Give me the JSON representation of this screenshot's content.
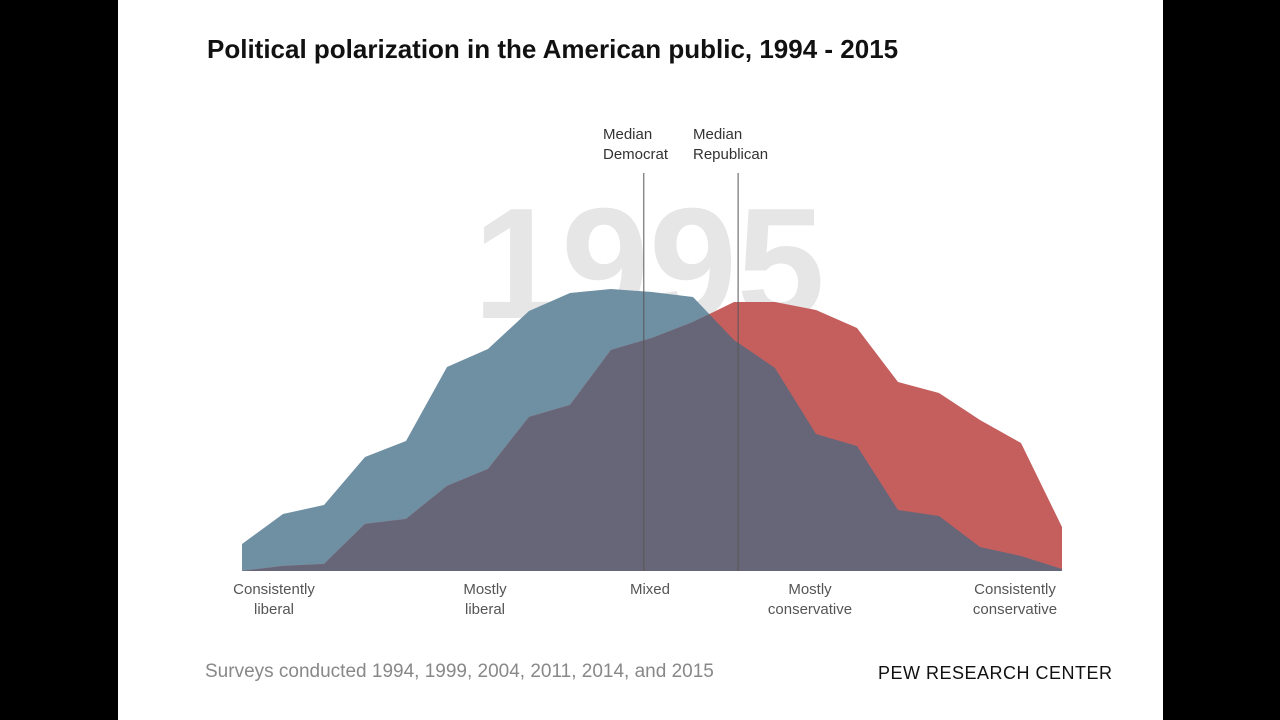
{
  "title": "Political polarization in the American public, 1994 - 2015",
  "footnote": "Surveys conducted 1994, 1999, 2004, 2011, 2014, and 2015",
  "brand": "PEW RESEARCH CENTER",
  "chart_data": {
    "type": "area",
    "title": "Political polarization in the American public, 1994 - 2015",
    "year_watermark": "1995",
    "x": [
      -10,
      -9,
      -8,
      -7,
      -6,
      -5,
      -4,
      -3,
      -2,
      -1,
      0,
      1,
      2,
      3,
      4,
      5,
      6,
      7,
      8,
      9,
      10
    ],
    "x_tick_labels": [
      {
        "x": -9,
        "lines": [
          "Consistently",
          "liberal"
        ]
      },
      {
        "x": -4,
        "lines": [
          "Mostly",
          "liberal"
        ]
      },
      {
        "x": 0,
        "lines": [
          "Mixed",
          ""
        ]
      },
      {
        "x": 4,
        "lines": [
          "Mostly",
          "conservative"
        ]
      },
      {
        "x": 9,
        "lines": [
          "Consistently",
          "conservative"
        ]
      }
    ],
    "xlim": [
      -10,
      10
    ],
    "ylim": [
      0,
      30
    ],
    "grid": false,
    "series": [
      {
        "name": "Democrat",
        "color": "#6f8fa3",
        "values": [
          2.7,
          5.7,
          6.6,
          11.4,
          13.0,
          20.4,
          22.2,
          26.0,
          27.8,
          28.2,
          27.9,
          27.4,
          23.1,
          20.3,
          13.7,
          12.5,
          6.1,
          5.5,
          2.4,
          1.5,
          0.2
        ]
      },
      {
        "name": "Republican",
        "color": "#c55f5e",
        "values": [
          0,
          0.5,
          0.7,
          4.7,
          5.2,
          8.5,
          10.2,
          15.4,
          16.6,
          22.1,
          23.3,
          24.9,
          26.9,
          26.9,
          26.1,
          24.3,
          18.9,
          17.8,
          15.1,
          12.8,
          4.4
        ]
      }
    ],
    "overlap_color": "#676678",
    "medians": [
      {
        "label_lines": [
          "Median",
          "Democrat"
        ],
        "x": -0.2
      },
      {
        "label_lines": [
          "Median",
          "Republican"
        ],
        "x": 2.1
      }
    ]
  }
}
